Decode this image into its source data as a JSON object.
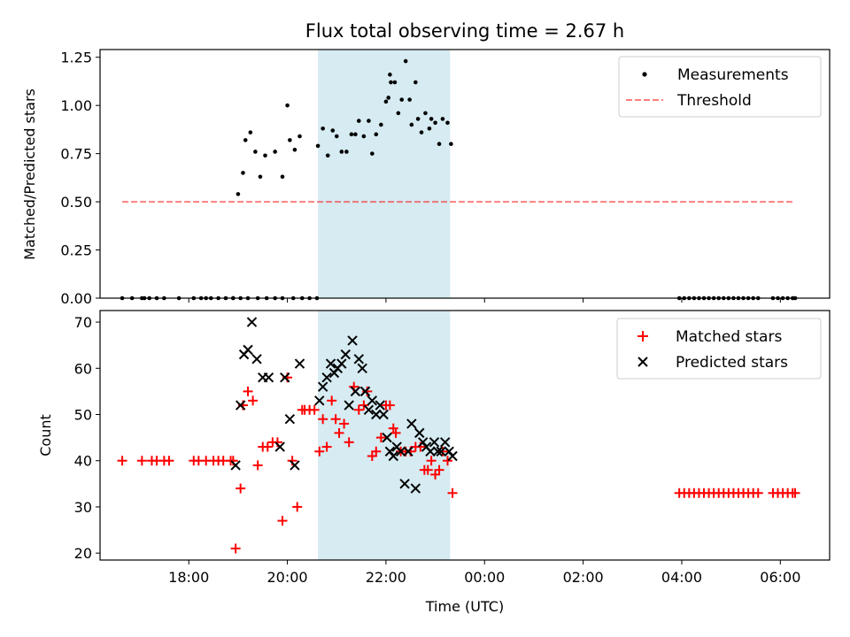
{
  "title": "Flux total observing time = 2.67 h",
  "colors": {
    "highlight": "#add8e6",
    "threshold": "#ff0000",
    "matched": "#ff0000",
    "predicted": "#000000",
    "measurements": "#000000"
  },
  "chart_data": [
    {
      "type": "scatter",
      "ylabel": "Matched/Predicted stars",
      "ylim": [
        0,
        1.29
      ],
      "yticks": [
        0.0,
        0.25,
        0.5,
        0.75,
        1.0,
        1.25
      ],
      "ytick_labels": [
        "0.00",
        "0.25",
        "0.50",
        "0.75",
        "1.00",
        "1.25"
      ],
      "xlim_hours": [
        16.2,
        31.0
      ],
      "highlight_span_hours": [
        20.62,
        23.3
      ],
      "legend": {
        "placement": "top-right",
        "entries": [
          "Measurements",
          "Threshold"
        ]
      },
      "threshold": {
        "name": "Threshold",
        "value": 0.5,
        "x_hours": [
          16.65,
          30.3
        ]
      },
      "series": [
        {
          "name": "Measurements",
          "marker": "dot",
          "x_hours": [
            16.65,
            17.05,
            17.2,
            17.35,
            17.5,
            18.1,
            18.25,
            18.45,
            18.6,
            18.75,
            18.9,
            19.05,
            19.2,
            19.4,
            19.58,
            19.75,
            19.9,
            20.12,
            20.3,
            20.45,
            20.6,
            16.85,
            17.1,
            17.8,
            18.35,
            18.9,
            19.0,
            19.1,
            19.15,
            19.25,
            19.35,
            19.45,
            19.55,
            19.75,
            19.9,
            20.0,
            20.05,
            20.15,
            20.25,
            20.62,
            20.72,
            20.82,
            20.92,
            21.0,
            21.1,
            21.2,
            21.3,
            21.38,
            21.45,
            21.55,
            21.65,
            21.72,
            21.8,
            21.9,
            22.0,
            22.05,
            22.08,
            22.1,
            22.18,
            22.25,
            22.32,
            22.4,
            22.48,
            22.52,
            22.6,
            22.65,
            22.72,
            22.8,
            22.88,
            22.92,
            23.0,
            23.08,
            23.15,
            23.25,
            23.32
          ],
          "y": [
            0,
            0,
            0,
            0,
            0,
            0,
            0,
            0,
            0,
            0,
            0,
            0,
            0,
            0,
            0,
            0,
            0,
            0,
            0,
            0,
            0,
            0,
            0,
            0,
            0,
            0,
            0.54,
            0.65,
            0.82,
            0.86,
            0.76,
            0.63,
            0.74,
            0.76,
            0.63,
            1.0,
            0.82,
            0.77,
            0.84,
            0.79,
            0.88,
            0.74,
            0.87,
            0.84,
            0.76,
            0.76,
            0.85,
            0.85,
            0.92,
            0.84,
            0.92,
            0.75,
            0.85,
            0.9,
            1.02,
            1.04,
            1.16,
            1.12,
            1.12,
            0.96,
            1.03,
            1.23,
            1.03,
            0.9,
            1.12,
            0.93,
            0.86,
            0.96,
            0.88,
            0.93,
            0.91,
            0.8,
            0.93,
            0.91,
            0.8
          ],
          "x_hours_zeros_right": [
            27.95,
            28.05,
            28.15,
            28.25,
            28.35,
            28.45,
            28.55,
            28.65,
            28.75,
            28.85,
            28.95,
            29.05,
            29.15,
            29.25,
            29.35,
            29.45,
            29.55,
            29.85,
            29.95,
            30.05,
            30.15,
            30.25,
            30.3
          ]
        }
      ]
    },
    {
      "type": "scatter",
      "xlabel": "Time (UTC)",
      "ylabel": "Count",
      "ylim": [
        18.5,
        72.5
      ],
      "yticks": [
        20,
        30,
        40,
        50,
        60,
        70
      ],
      "ytick_labels": [
        "20",
        "30",
        "40",
        "50",
        "60",
        "70"
      ],
      "xlim_hours": [
        16.2,
        31.0
      ],
      "xticks_hours": [
        18,
        20,
        22,
        24,
        26,
        28,
        30
      ],
      "xtick_labels": [
        "18:00",
        "20:00",
        "22:00",
        "00:00",
        "02:00",
        "04:00",
        "06:00"
      ],
      "highlight_span_hours": [
        20.62,
        23.3
      ],
      "legend": {
        "placement": "top-right",
        "entries": [
          "Matched stars",
          "Predicted stars"
        ]
      },
      "series": [
        {
          "name": "Matched stars",
          "marker": "plus",
          "x_hours": [
            16.65,
            17.05,
            17.25,
            17.35,
            17.5,
            17.6,
            18.1,
            18.2,
            18.35,
            18.5,
            18.6,
            18.7,
            18.85,
            18.9,
            18.95,
            19.05,
            19.1,
            19.2,
            19.3,
            19.4,
            19.5,
            19.6,
            19.7,
            19.8,
            19.9,
            20.0,
            20.1,
            20.2,
            20.3,
            20.35,
            20.45,
            20.55,
            20.65,
            20.72,
            20.8,
            20.9,
            20.98,
            21.05,
            21.15,
            21.25,
            21.35,
            21.45,
            21.55,
            21.62,
            21.72,
            21.8,
            21.9,
            22.0,
            22.08,
            22.15,
            22.2,
            22.3,
            22.4,
            22.5,
            22.6,
            22.7,
            22.78,
            22.85,
            22.92,
            23.0,
            23.08,
            23.15,
            23.25,
            23.35,
            27.95,
            28.05,
            28.15,
            28.25,
            28.35,
            28.45,
            28.55,
            28.65,
            28.75,
            28.85,
            28.95,
            29.05,
            29.15,
            29.25,
            29.35,
            29.45,
            29.55,
            29.85,
            29.95,
            30.05,
            30.15,
            30.25,
            30.3
          ],
          "y": [
            40,
            40,
            40,
            40,
            40,
            40,
            40,
            40,
            40,
            40,
            40,
            40,
            40,
            40,
            21,
            34,
            52,
            55,
            53,
            39,
            43,
            43,
            44,
            44,
            27,
            58,
            40,
            30,
            51,
            51,
            51,
            51,
            42,
            49,
            43,
            53,
            49,
            46,
            48,
            44,
            56,
            51,
            52,
            55,
            41,
            42,
            45,
            52,
            52,
            47,
            46,
            42,
            42,
            42,
            43,
            43,
            38,
            38,
            40,
            37,
            38,
            42,
            40,
            33,
            33,
            33,
            33,
            33,
            33,
            33,
            33,
            33,
            33,
            33,
            33,
            33,
            33,
            33,
            33,
            33,
            33,
            33,
            33,
            33,
            33,
            33,
            33
          ]
        },
        {
          "name": "Predicted stars",
          "marker": "x",
          "x_hours": [
            18.95,
            19.05,
            19.12,
            19.2,
            19.28,
            19.38,
            19.5,
            19.62,
            19.85,
            19.95,
            20.05,
            20.15,
            20.25,
            20.65,
            20.72,
            20.8,
            20.88,
            20.95,
            21.02,
            21.1,
            21.18,
            21.25,
            21.32,
            21.38,
            21.45,
            21.52,
            21.58,
            21.65,
            21.72,
            21.8,
            21.88,
            21.95,
            22.02,
            22.08,
            22.15,
            22.22,
            22.3,
            22.38,
            22.45,
            22.52,
            22.6,
            22.68,
            22.75,
            22.82,
            22.9,
            22.98,
            23.05,
            23.12,
            23.2,
            23.28,
            23.35
          ],
          "y": [
            39,
            52,
            63,
            64,
            70,
            62,
            58,
            58,
            43,
            58,
            49,
            39,
            61,
            53,
            56,
            58,
            61,
            59,
            60,
            61,
            63,
            52,
            66,
            55,
            62,
            60,
            55,
            51,
            53,
            50,
            52,
            50,
            45,
            42,
            41,
            43,
            42,
            35,
            42,
            48,
            34,
            46,
            44,
            43,
            42,
            44,
            42,
            42,
            44,
            42,
            41
          ]
        }
      ]
    }
  ]
}
